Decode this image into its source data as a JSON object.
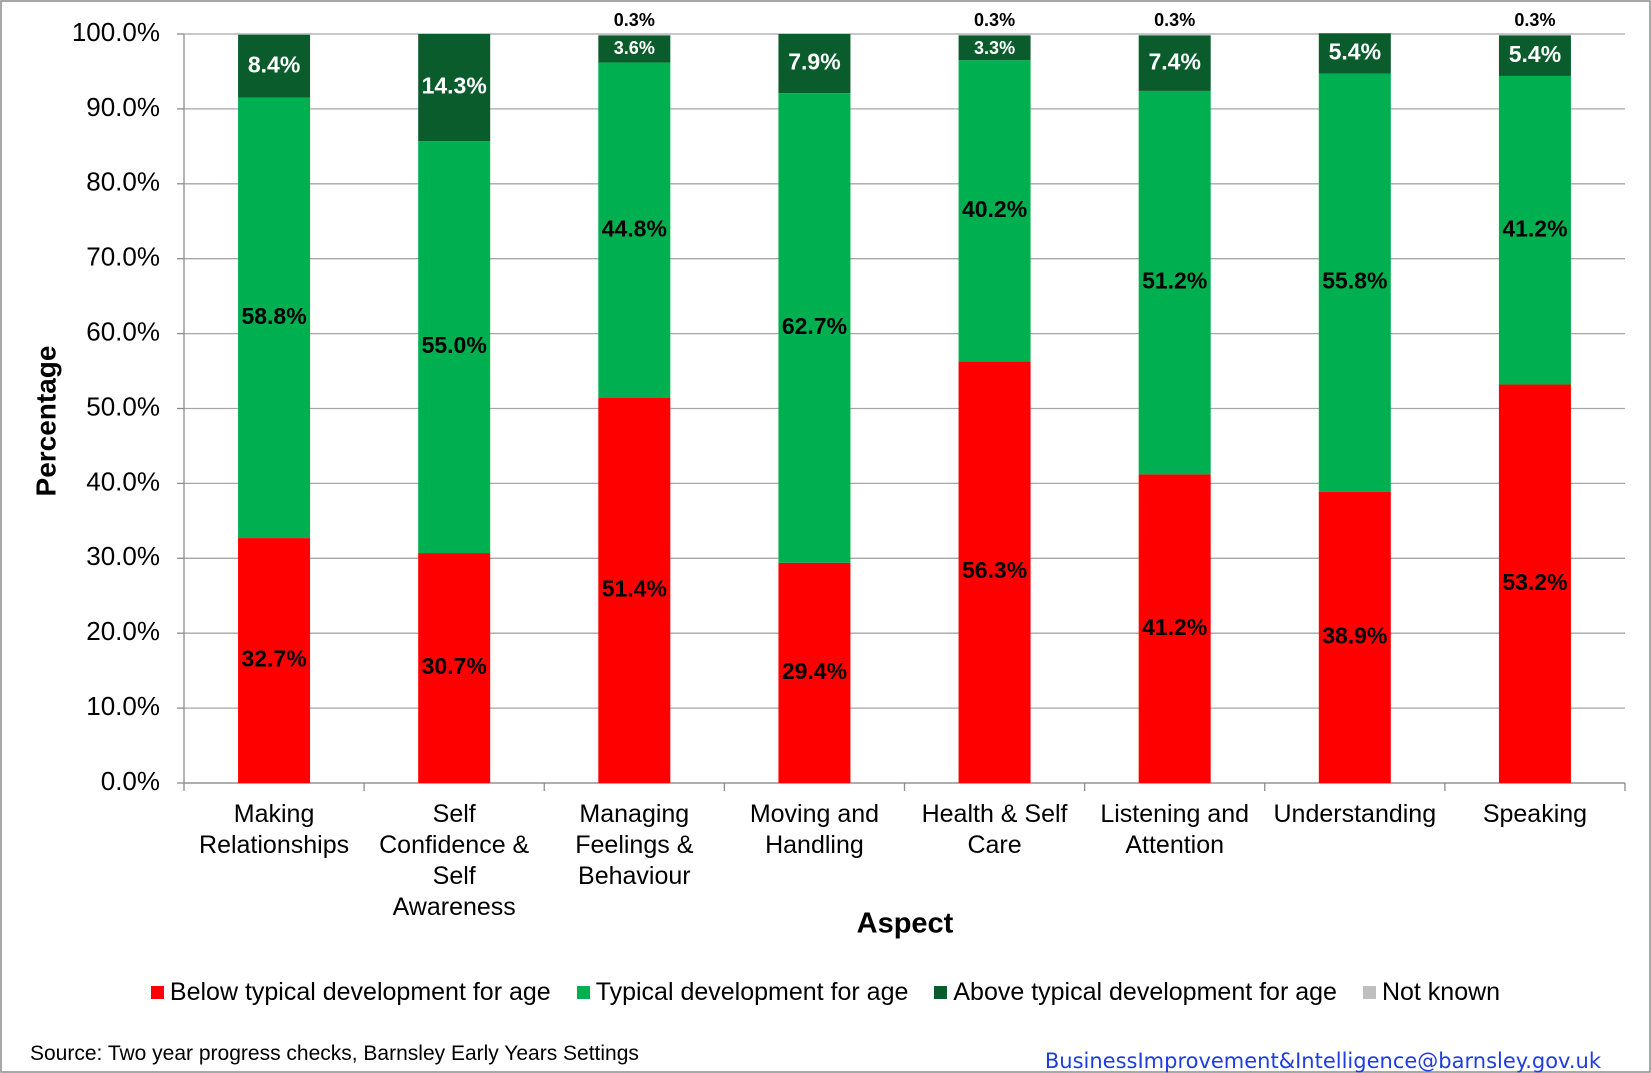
{
  "chart_data": {
    "type": "bar",
    "stacked": true,
    "x_label": "Aspect",
    "y_label": "Percentage",
    "categories": [
      "Making Relationships",
      "Self Confidence & Self Awareness",
      "Managing Feelings & Behaviour",
      "Moving and Handling",
      "Health & Self Care",
      "Listening and Attention",
      "Understanding",
      "Speaking"
    ],
    "series": [
      {
        "name": "Below typical development for age",
        "color": "#ff0000",
        "values": [
          32.7,
          30.7,
          51.4,
          29.4,
          56.3,
          41.2,
          38.9,
          53.2
        ],
        "value_labels": [
          "32.7%",
          "30.7%",
          "51.4%",
          "29.4%",
          "56.3%",
          "41.2%",
          "38.9%",
          "53.2%"
        ]
      },
      {
        "name": "Typical development for age",
        "color": "#00b050",
        "values": [
          58.8,
          55.0,
          44.8,
          62.7,
          40.2,
          51.2,
          55.8,
          41.2
        ],
        "value_labels": [
          "58.8%",
          "55.0%",
          "44.8%",
          "62.7%",
          "40.2%",
          "51.2%",
          "55.8%",
          "41.2%"
        ]
      },
      {
        "name": "Above typical development for age",
        "color": "#0b5c2c",
        "values": [
          8.4,
          14.3,
          3.6,
          7.9,
          3.3,
          7.4,
          5.4,
          5.4
        ],
        "value_labels": [
          "8.4%",
          "14.3%",
          "3.6%",
          "7.9%",
          "3.3%",
          "7.4%",
          "5.4%",
          "5.4%"
        ]
      },
      {
        "name": "Not known",
        "color": "#bfbfbf",
        "values": [
          0,
          0,
          0.3,
          0,
          0.3,
          0.3,
          0,
          0.3
        ],
        "value_labels": [
          null,
          null,
          "0.3%",
          null,
          "0.3%",
          "0.3%",
          null,
          "0.3%"
        ]
      }
    ],
    "ylim": [
      0,
      100
    ],
    "yticks": [
      {
        "value": 0,
        "label": "0.0%"
      },
      {
        "value": 10,
        "label": "10.0%"
      },
      {
        "value": 20,
        "label": "20.0%"
      },
      {
        "value": 30,
        "label": "30.0%"
      },
      {
        "value": 40,
        "label": "40.0%"
      },
      {
        "value": 50,
        "label": "50.0%"
      },
      {
        "value": 60,
        "label": "60.0%"
      },
      {
        "value": 70,
        "label": "70.0%"
      },
      {
        "value": 80,
        "label": "80.0%"
      },
      {
        "value": 90,
        "label": "90.0%"
      },
      {
        "value": 100,
        "label": "100.0%"
      }
    ],
    "grid": true,
    "legend": "bottom"
  },
  "footer": {
    "source": "Source: Two year progress checks, Barnsley Early Years Settings",
    "contact": "BusinessImprovement&Intelligence@barnsley.gov.uk"
  }
}
